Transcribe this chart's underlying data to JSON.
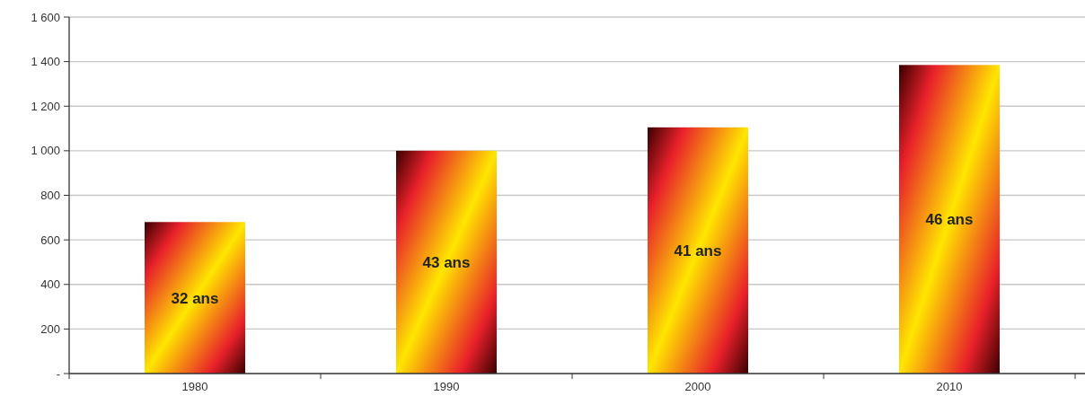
{
  "chart_data": {
    "type": "bar",
    "categories": [
      "1980",
      "1990",
      "2000",
      "2010"
    ],
    "values": [
      680,
      1000,
      1105,
      1385
    ],
    "color": "#ffe600",
    "ylim": [
      0,
      1600
    ],
    "yticks": [
      {
        "value": 0,
        "label": "-"
      },
      {
        "value": 200,
        "label": "200"
      },
      {
        "value": 400,
        "label": "400"
      },
      {
        "value": 600,
        "label": "600"
      },
      {
        "value": 800,
        "label": "800"
      },
      {
        "value": 1000,
        "label": "1 000"
      },
      {
        "value": 1200,
        "label": "1 200"
      },
      {
        "value": 1400,
        "label": "1 400"
      },
      {
        "value": 1600,
        "label": "1 600"
      }
    ],
    "grid": "y",
    "annotations": [
      "32 ans",
      "43 ans",
      "41 ans",
      "46 ans"
    ]
  }
}
